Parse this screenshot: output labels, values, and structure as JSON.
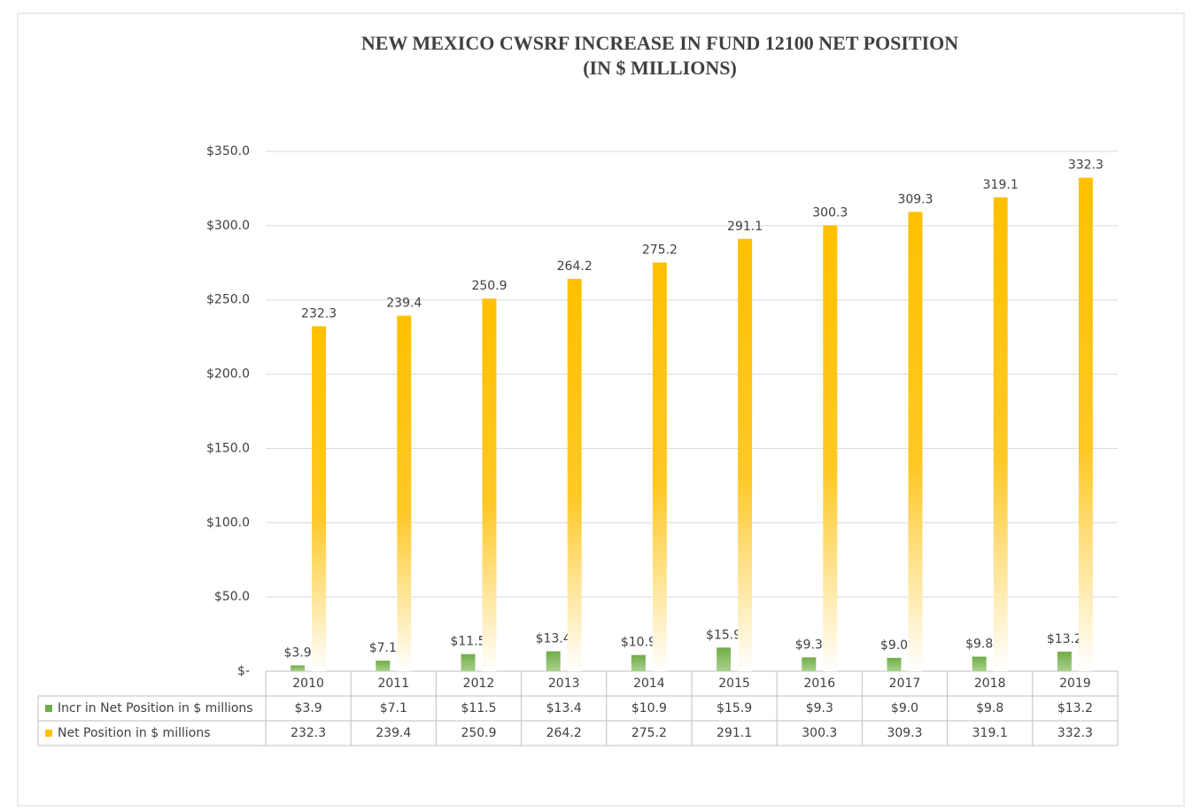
{
  "chart_data": {
    "type": "bar",
    "title": [
      "NEW MEXICO CWSRF INCREASE IN FUND 12100 NET POSITION",
      "(IN $ MILLIONS)"
    ],
    "categories": [
      "2010",
      "2011",
      "2012",
      "2013",
      "2014",
      "2015",
      "2016",
      "2017",
      "2018",
      "2019"
    ],
    "series": [
      {
        "name": "Incr in Net Position in $ millions",
        "color": "#70ad47",
        "values": [
          3.9,
          7.1,
          11.5,
          13.4,
          10.9,
          15.9,
          9.3,
          9.0,
          9.8,
          13.2
        ],
        "value_labels": [
          "$3.9",
          "$7.1",
          "$11.5",
          "$13.4",
          "$10.9",
          "$15.9",
          "$9.3",
          "$9.0",
          "$9.8",
          "$13.2"
        ]
      },
      {
        "name": "Net Position in $ millions",
        "color": "#ffc000",
        "values": [
          232.3,
          239.4,
          250.9,
          264.2,
          275.2,
          291.1,
          300.3,
          309.3,
          319.1,
          332.3
        ]
      }
    ],
    "ylim": [
      0,
      350
    ],
    "yticks": [
      {
        "value": 0,
        "label": "$-"
      },
      {
        "value": 50,
        "label": "$50.0"
      },
      {
        "value": 100,
        "label": "$100.0"
      },
      {
        "value": 150,
        "label": "$150.0"
      },
      {
        "value": 200,
        "label": "$200.0"
      },
      {
        "value": 250,
        "label": "$250.0"
      },
      {
        "value": 300,
        "label": "$300.0"
      },
      {
        "value": 350,
        "label": "$350.0"
      }
    ],
    "grid": true,
    "legend": "data-table"
  }
}
